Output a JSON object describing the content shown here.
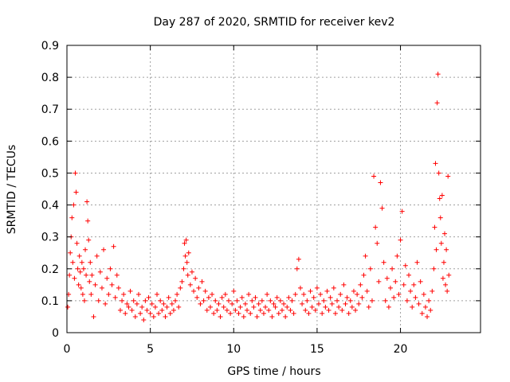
{
  "chart_data": {
    "type": "scatter",
    "title": "Day 287 of 2020, SRMTID for receiver kev2",
    "xlabel": "GPS time / hours",
    "ylabel": "SRMTID / TECUs",
    "xlim": [
      0,
      24.8
    ],
    "ylim": [
      0,
      0.9
    ],
    "xticks": [
      0,
      5,
      10,
      15,
      20
    ],
    "xtick_labels": [
      "0",
      "5",
      "10",
      "15",
      "20"
    ],
    "yticks": [
      0,
      0.1,
      0.2,
      0.3,
      0.4,
      0.5,
      0.6,
      0.7,
      0.8,
      0.9
    ],
    "ytick_labels": [
      "0",
      "0.1",
      "0.2",
      "0.3",
      "0.4",
      "0.5",
      "0.6",
      "0.7",
      "0.8",
      "0.9"
    ],
    "grid": true,
    "marker": "+",
    "color": "#ff0000",
    "series": [
      {
        "name": "SRMTID",
        "x": [
          0.05,
          0.1,
          0.15,
          0.2,
          0.25,
          0.3,
          0.35,
          0.4,
          0.45,
          0.5,
          0.55,
          0.6,
          0.65,
          0.7,
          0.75,
          0.8,
          0.85,
          0.9,
          0.95,
          1.0,
          1.05,
          1.1,
          1.15,
          1.2,
          1.25,
          1.3,
          1.35,
          1.4,
          1.45,
          1.5,
          1.6,
          1.7,
          1.8,
          1.9,
          2.0,
          2.1,
          2.2,
          2.3,
          2.4,
          2.5,
          2.6,
          2.7,
          2.8,
          2.9,
          3.0,
          3.1,
          3.2,
          3.3,
          3.4,
          3.5,
          3.6,
          3.7,
          3.8,
          3.9,
          4.0,
          4.1,
          4.2,
          4.3,
          4.4,
          4.5,
          4.6,
          4.7,
          4.8,
          4.9,
          5.0,
          5.1,
          5.2,
          5.3,
          5.4,
          5.5,
          5.6,
          5.7,
          5.8,
          5.9,
          6.0,
          6.1,
          6.2,
          6.3,
          6.4,
          6.5,
          6.6,
          6.7,
          6.8,
          6.9,
          7.0,
          7.05,
          7.1,
          7.15,
          7.2,
          7.25,
          7.3,
          7.4,
          7.5,
          7.6,
          7.7,
          7.8,
          7.9,
          8.0,
          8.1,
          8.2,
          8.3,
          8.4,
          8.5,
          8.6,
          8.7,
          8.8,
          8.9,
          9.0,
          9.1,
          9.2,
          9.3,
          9.4,
          9.5,
          9.6,
          9.7,
          9.8,
          9.9,
          10.0,
          10.1,
          10.2,
          10.3,
          10.4,
          10.5,
          10.6,
          10.7,
          10.8,
          10.9,
          11.0,
          11.1,
          11.2,
          11.3,
          11.4,
          11.5,
          11.6,
          11.7,
          11.8,
          11.9,
          12.0,
          12.1,
          12.2,
          12.3,
          12.4,
          12.5,
          12.6,
          12.7,
          12.8,
          12.9,
          13.0,
          13.1,
          13.2,
          13.3,
          13.4,
          13.5,
          13.6,
          13.7,
          13.8,
          13.9,
          14.0,
          14.1,
          14.2,
          14.3,
          14.4,
          14.5,
          14.6,
          14.7,
          14.8,
          14.9,
          15.0,
          15.1,
          15.2,
          15.3,
          15.4,
          15.5,
          15.6,
          15.7,
          15.8,
          15.9,
          16.0,
          16.1,
          16.2,
          16.3,
          16.4,
          16.5,
          16.6,
          16.7,
          16.8,
          16.9,
          17.0,
          17.1,
          17.2,
          17.3,
          17.4,
          17.5,
          17.6,
          17.7,
          17.8,
          17.9,
          18.0,
          18.1,
          18.2,
          18.3,
          18.4,
          18.5,
          18.6,
          18.7,
          18.8,
          18.9,
          19.0,
          19.1,
          19.2,
          19.3,
          19.4,
          19.5,
          19.6,
          19.7,
          19.8,
          19.9,
          20.0,
          20.1,
          20.2,
          20.3,
          20.4,
          20.5,
          20.6,
          20.7,
          20.8,
          20.9,
          21.0,
          21.1,
          21.2,
          21.3,
          21.4,
          21.5,
          21.6,
          21.7,
          21.8,
          21.9,
          22.0,
          22.05,
          22.1,
          22.15,
          22.2,
          22.25,
          22.3,
          22.35,
          22.4,
          22.45,
          22.5,
          22.55,
          22.6,
          22.65,
          22.7,
          22.75,
          22.8,
          22.85,
          22.9
        ],
        "y": [
          0.08,
          0.12,
          0.18,
          0.25,
          0.3,
          0.36,
          0.22,
          0.4,
          0.17,
          0.5,
          0.44,
          0.28,
          0.2,
          0.15,
          0.24,
          0.19,
          0.14,
          0.22,
          0.12,
          0.2,
          0.1,
          0.26,
          0.18,
          0.41,
          0.35,
          0.29,
          0.16,
          0.22,
          0.12,
          0.18,
          0.05,
          0.15,
          0.24,
          0.1,
          0.19,
          0.14,
          0.26,
          0.09,
          0.17,
          0.12,
          0.2,
          0.15,
          0.27,
          0.11,
          0.18,
          0.14,
          0.07,
          0.1,
          0.12,
          0.06,
          0.09,
          0.08,
          0.13,
          0.07,
          0.1,
          0.05,
          0.09,
          0.12,
          0.06,
          0.08,
          0.04,
          0.1,
          0.07,
          0.11,
          0.06,
          0.09,
          0.05,
          0.08,
          0.12,
          0.06,
          0.1,
          0.07,
          0.09,
          0.05,
          0.08,
          0.11,
          0.06,
          0.09,
          0.07,
          0.1,
          0.12,
          0.08,
          0.14,
          0.16,
          0.2,
          0.28,
          0.24,
          0.29,
          0.22,
          0.18,
          0.25,
          0.15,
          0.19,
          0.13,
          0.17,
          0.11,
          0.14,
          0.09,
          0.16,
          0.1,
          0.13,
          0.07,
          0.11,
          0.08,
          0.12,
          0.06,
          0.1,
          0.07,
          0.09,
          0.05,
          0.11,
          0.08,
          0.12,
          0.07,
          0.1,
          0.06,
          0.09,
          0.13,
          0.07,
          0.1,
          0.06,
          0.08,
          0.11,
          0.05,
          0.09,
          0.07,
          0.12,
          0.06,
          0.1,
          0.08,
          0.11,
          0.05,
          0.09,
          0.07,
          0.1,
          0.06,
          0.08,
          0.12,
          0.07,
          0.1,
          0.05,
          0.09,
          0.08,
          0.11,
          0.06,
          0.1,
          0.07,
          0.09,
          0.05,
          0.08,
          0.11,
          0.07,
          0.1,
          0.06,
          0.12,
          0.2,
          0.23,
          0.14,
          0.09,
          0.12,
          0.07,
          0.1,
          0.06,
          0.13,
          0.08,
          0.11,
          0.07,
          0.14,
          0.09,
          0.12,
          0.06,
          0.1,
          0.08,
          0.13,
          0.07,
          0.11,
          0.09,
          0.14,
          0.06,
          0.1,
          0.08,
          0.12,
          0.07,
          0.15,
          0.09,
          0.11,
          0.06,
          0.1,
          0.08,
          0.13,
          0.07,
          0.12,
          0.09,
          0.15,
          0.11,
          0.18,
          0.24,
          0.13,
          0.08,
          0.2,
          0.1,
          0.49,
          0.33,
          0.28,
          0.16,
          0.47,
          0.39,
          0.22,
          0.1,
          0.17,
          0.08,
          0.14,
          0.2,
          0.11,
          0.16,
          0.24,
          0.12,
          0.29,
          0.38,
          0.15,
          0.21,
          0.1,
          0.18,
          0.13,
          0.08,
          0.15,
          0.11,
          0.22,
          0.09,
          0.16,
          0.06,
          0.12,
          0.08,
          0.05,
          0.1,
          0.07,
          0.13,
          0.2,
          0.33,
          0.53,
          0.26,
          0.72,
          0.81,
          0.5,
          0.42,
          0.36,
          0.28,
          0.43,
          0.17,
          0.22,
          0.31,
          0.15,
          0.26,
          0.13,
          0.49,
          0.18
        ]
      }
    ]
  }
}
